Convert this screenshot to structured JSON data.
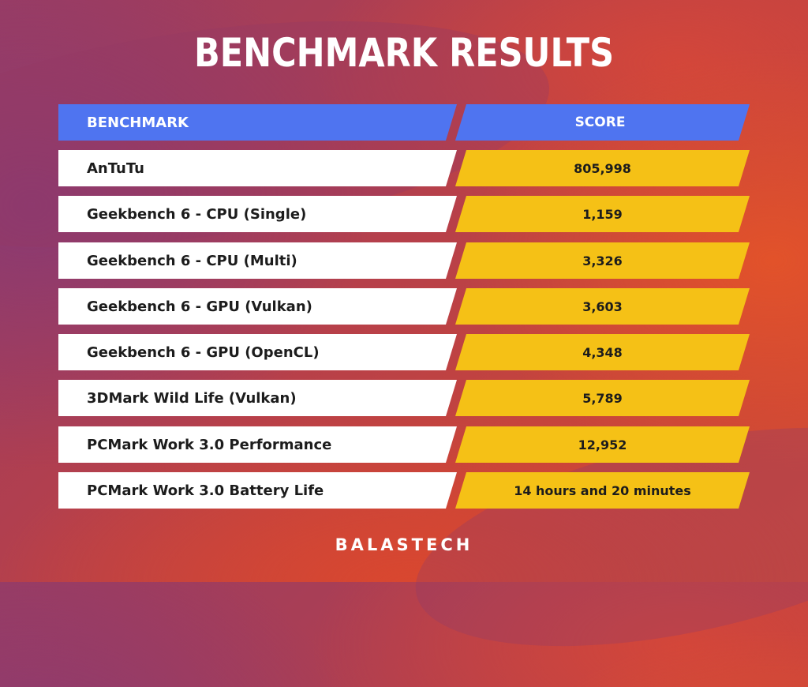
{
  "title": "BENCHMARK RESULTS",
  "table": {
    "header": {
      "benchmark": "BENCHMARK",
      "score": "SCORE"
    },
    "rows": [
      {
        "benchmark": "AnTuTu",
        "score": "805,998"
      },
      {
        "benchmark": "Geekbench 6 - CPU (Single)",
        "score": "1,159"
      },
      {
        "benchmark": "Geekbench 6 - CPU (Multi)",
        "score": "3,326"
      },
      {
        "benchmark": "Geekbench 6 - GPU (Vulkan)",
        "score": "3,603"
      },
      {
        "benchmark": "Geekbench 6 - GPU (OpenCL)",
        "score": "4,348"
      },
      {
        "benchmark": "3DMark Wild Life (Vulkan)",
        "score": "5,789"
      },
      {
        "benchmark": "PCMark Work 3.0 Performance",
        "score": "12,952"
      },
      {
        "benchmark": "PCMark Work 3.0 Battery Life",
        "score": "14 hours and 20 minutes"
      }
    ]
  },
  "brand": "BALASTECH",
  "colors": {
    "header_bg": "#4f74f0",
    "benchmark_cell_bg": "#ffffff",
    "score_cell_bg": "#f5c116",
    "background_start": "#9a3c62",
    "background_end": "#d34a33"
  }
}
